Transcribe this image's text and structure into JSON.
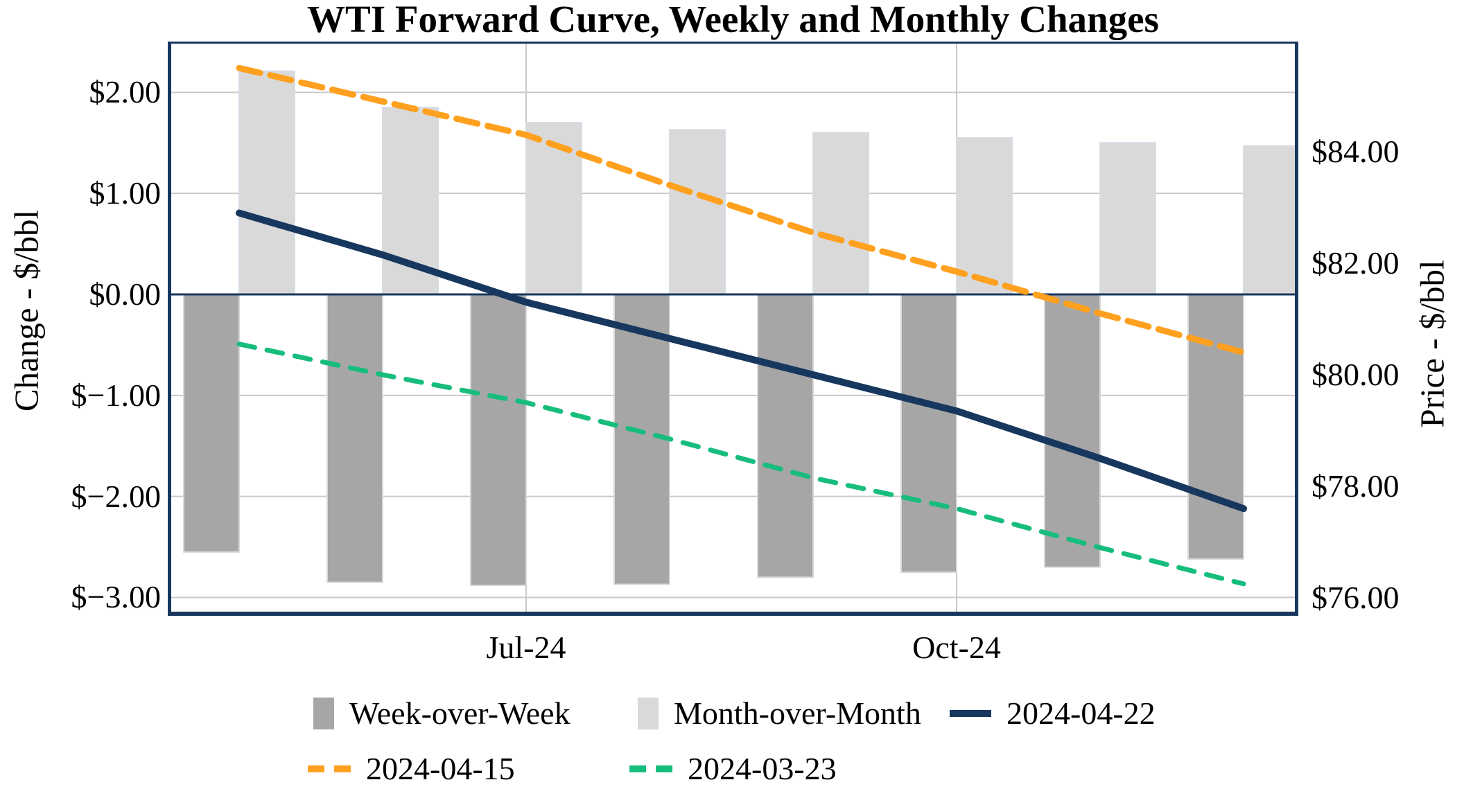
{
  "title": "WTI Forward Curve, Weekly and Monthly Changes",
  "y_left": {
    "label": "Change - $/bbl",
    "ticks": [
      {
        "value": 2,
        "label": "$2.00"
      },
      {
        "value": 1,
        "label": "$1.00"
      },
      {
        "value": 0,
        "label": "$0.00"
      },
      {
        "value": -1,
        "label": "$−1.00"
      },
      {
        "value": -2,
        "label": "$−2.00"
      },
      {
        "value": -3,
        "label": "$−3.00"
      }
    ],
    "range": [
      -3.182,
      2.503
    ]
  },
  "y_right": {
    "label": "Price - $/bbl",
    "ticks": [
      {
        "value": 84,
        "label": "$84.00"
      },
      {
        "value": 82,
        "label": "$82.00"
      },
      {
        "value": 80,
        "label": "$80.00"
      },
      {
        "value": 78,
        "label": "$78.00"
      },
      {
        "value": 76,
        "label": "$76.00"
      }
    ],
    "range": [
      75.677,
      85.975
    ]
  },
  "x_axis": {
    "n_points": 8,
    "visible_ticks": [
      {
        "index": 2,
        "label": "Jul-24"
      },
      {
        "index": 5,
        "label": "Oct-24"
      }
    ]
  },
  "colors": {
    "dark_gray": "#A6A6A6",
    "light_gray": "#D9D9D9",
    "navy": "#17375E",
    "orange": "#FFA01F",
    "green": "#17BD7D",
    "gridline": "#C9C9C9",
    "bar_edge_dark": "#D8D8D8",
    "bar_edge_light": "#D6DCE4"
  },
  "chart_data": {
    "type": "bar",
    "subtype": "dual-axis bar + line combo",
    "title": "WTI Forward Curve, Weekly and Monthly Changes",
    "xlabel": "",
    "ylabel_left": "Change - $/bbl",
    "ylabel_right": "Price - $/bbl",
    "grid": true,
    "legend_position": "bottom",
    "x_tick_labels_visible": [
      "Jul-24",
      "Oct-24"
    ],
    "series": [
      {
        "name": "Week-over-Week",
        "type": "bar",
        "axis": "left",
        "style": "solid",
        "color_key": "dark_gray",
        "values": [
          -2.55,
          -2.85,
          -2.88,
          -2.87,
          -2.8,
          -2.75,
          -2.7,
          -2.62
        ]
      },
      {
        "name": "Month-over-Month",
        "type": "bar",
        "axis": "left",
        "style": "solid",
        "color_key": "light_gray",
        "values": [
          2.21,
          1.85,
          1.7,
          1.63,
          1.6,
          1.55,
          1.5,
          1.47
        ]
      },
      {
        "name": "2024-04-22",
        "type": "line",
        "axis": "right",
        "style": "solid",
        "color_key": "navy",
        "values": [
          82.9,
          82.15,
          81.3,
          80.65,
          80.0,
          79.35,
          78.5,
          77.6
        ]
      },
      {
        "name": "2024-04-15",
        "type": "line",
        "axis": "right",
        "style": "dashed",
        "color_key": "orange",
        "values": [
          85.5,
          84.9,
          84.3,
          83.4,
          82.55,
          81.85,
          81.1,
          80.4
        ]
      },
      {
        "name": "2024-03-23",
        "type": "line",
        "axis": "right",
        "style": "dashed",
        "color_key": "green",
        "values": [
          80.55,
          80.0,
          79.5,
          78.85,
          78.15,
          77.6,
          76.9,
          76.25
        ]
      }
    ]
  },
  "legend": {
    "rows": [
      {
        "series": [
          "Week-over-Week",
          "Month-over-Month",
          "2024-04-22"
        ]
      },
      {
        "series": [
          "2024-04-15",
          "2024-03-23"
        ]
      }
    ]
  }
}
